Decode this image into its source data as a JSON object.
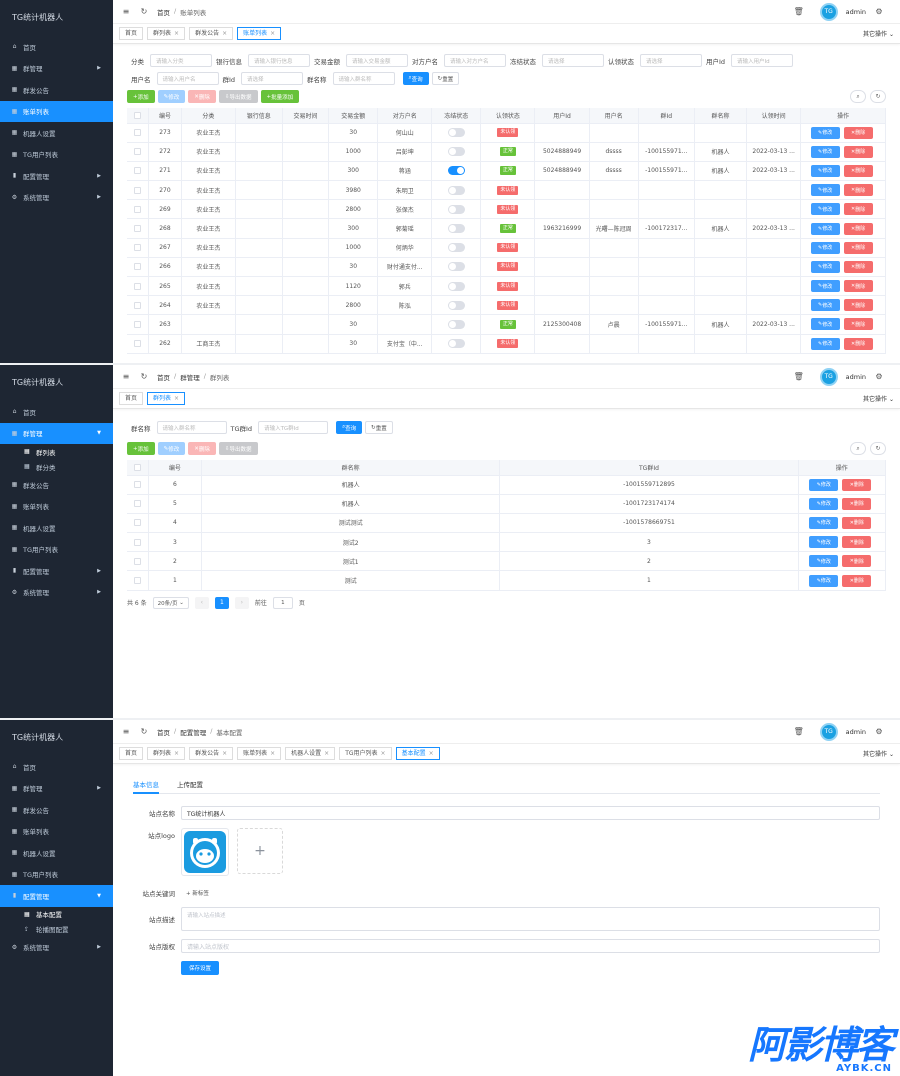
{
  "brand": "TG统计机器人",
  "menu_labels": {
    "home": "首页",
    "group_mgmt": "群管理",
    "group_list": "群列表",
    "group_category": "群分类",
    "announce": "群发公告",
    "bills": "账单列表",
    "robot": "机器人设置",
    "tg_users": "TG用户列表",
    "config": "配置管理",
    "basic_config": "基本配置",
    "carousel_config": "轮播图配置",
    "system": "系统管理"
  },
  "user": {
    "name": "admin"
  },
  "other_ops": "其它操作",
  "screen1": {
    "breadcrumb": [
      "首页",
      "账单列表"
    ],
    "tags": [
      "首页",
      "群列表",
      "群发公告",
      "账单列表"
    ],
    "filters_row1": [
      {
        "label": "分类",
        "placeholder": "请输入分类"
      },
      {
        "label": "银行信息",
        "placeholder": "请输入银行信息"
      },
      {
        "label": "交易金额",
        "placeholder": "请输入交易金额"
      },
      {
        "label": "对方户名",
        "placeholder": "请输入对方户名"
      },
      {
        "label": "冻结状态",
        "placeholder": "请选择"
      },
      {
        "label": "认领状态",
        "placeholder": "请选择"
      },
      {
        "label": "用户Id",
        "placeholder": "请输入用户Id"
      }
    ],
    "filters_row2": [
      {
        "label": "用户名",
        "placeholder": "请输入用户名"
      },
      {
        "label": "群Id",
        "placeholder": "请选择"
      },
      {
        "label": "群名称",
        "placeholder": "请输入群名称"
      }
    ],
    "search_btn": "查询",
    "reset_btn": "重置",
    "actions": [
      "添加",
      "修改",
      "删除",
      "导出数据",
      "批量添加"
    ],
    "columns": [
      "编号",
      "分类",
      "银行信息",
      "交易时间",
      "交易金额",
      "对方户名",
      "冻结状态",
      "认领状态",
      "用户Id",
      "用户名",
      "群Id",
      "群名称",
      "认领时间",
      "操作"
    ],
    "rows": [
      {
        "id": "273",
        "cat": "农业王杰",
        "bank": "",
        "time": "",
        "amount": "30",
        "payer": "何山山",
        "frozen": false,
        "claim": "未认领",
        "claim_type": "red",
        "uid": "",
        "uname": "",
        "gid": "",
        "gname": "",
        "ctime": ""
      },
      {
        "id": "272",
        "cat": "农业王杰",
        "bank": "",
        "time": "",
        "amount": "1000",
        "payer": "吕彭坤",
        "frozen": false,
        "claim": "正常",
        "claim_type": "green",
        "uid": "5024888949",
        "uname": "dssss",
        "gid": "-100155971...",
        "gname": "机器人",
        "ctime": "2022-03-13 ..."
      },
      {
        "id": "271",
        "cat": "农业王杰",
        "bank": "",
        "time": "",
        "amount": "300",
        "payer": "蒋涵",
        "frozen": true,
        "claim": "正常",
        "claim_type": "green",
        "uid": "5024888949",
        "uname": "dssss",
        "gid": "-100155971...",
        "gname": "机器人",
        "ctime": "2022-03-13 ..."
      },
      {
        "id": "270",
        "cat": "农业王杰",
        "bank": "",
        "time": "",
        "amount": "3980",
        "payer": "朱明卫",
        "frozen": false,
        "claim": "未认领",
        "claim_type": "red",
        "uid": "",
        "uname": "",
        "gid": "",
        "gname": "",
        "ctime": ""
      },
      {
        "id": "269",
        "cat": "农业王杰",
        "bank": "",
        "time": "",
        "amount": "2800",
        "payer": "张保杰",
        "frozen": false,
        "claim": "未认领",
        "claim_type": "red",
        "uid": "",
        "uname": "",
        "gid": "",
        "gname": "",
        "ctime": ""
      },
      {
        "id": "268",
        "cat": "农业王杰",
        "bank": "",
        "time": "",
        "amount": "300",
        "payer": "郭菊瑶",
        "frozen": false,
        "claim": "正常",
        "claim_type": "green",
        "uid": "1963216999",
        "uname": "光曙—陈冠周",
        "gid": "-100172317...",
        "gname": "机器人",
        "ctime": "2022-03-13 ..."
      },
      {
        "id": "267",
        "cat": "农业王杰",
        "bank": "",
        "time": "",
        "amount": "1000",
        "payer": "何炳华",
        "frozen": false,
        "claim": "未认领",
        "claim_type": "red",
        "uid": "",
        "uname": "",
        "gid": "",
        "gname": "",
        "ctime": ""
      },
      {
        "id": "266",
        "cat": "农业王杰",
        "bank": "",
        "time": "",
        "amount": "30",
        "payer": "财付通支付...",
        "frozen": false,
        "claim": "未认领",
        "claim_type": "red",
        "uid": "",
        "uname": "",
        "gid": "",
        "gname": "",
        "ctime": ""
      },
      {
        "id": "265",
        "cat": "农业王杰",
        "bank": "",
        "time": "",
        "amount": "1120",
        "payer": "郭兵",
        "frozen": false,
        "claim": "未认领",
        "claim_type": "red",
        "uid": "",
        "uname": "",
        "gid": "",
        "gname": "",
        "ctime": ""
      },
      {
        "id": "264",
        "cat": "农业王杰",
        "bank": "",
        "time": "",
        "amount": "2800",
        "payer": "陈泓",
        "frozen": false,
        "claim": "未认领",
        "claim_type": "red",
        "uid": "",
        "uname": "",
        "gid": "",
        "gname": "",
        "ctime": ""
      },
      {
        "id": "263",
        "cat": "",
        "bank": "",
        "time": "",
        "amount": "30",
        "payer": "",
        "frozen": false,
        "claim": "正常",
        "claim_type": "green",
        "uid": "2125300408",
        "uname": "卢晨",
        "gid": "-100155971...",
        "gname": "机器人",
        "ctime": "2022-03-13 ..."
      },
      {
        "id": "262",
        "cat": "工商王杰",
        "bank": "",
        "time": "",
        "amount": "30",
        "payer": "支付宝（中...",
        "frozen": false,
        "claim": "未认领",
        "claim_type": "red",
        "uid": "",
        "uname": "",
        "gid": "",
        "gname": "",
        "ctime": ""
      }
    ],
    "edit_btn": "修改",
    "del_btn": "删除"
  },
  "screen2": {
    "breadcrumb": [
      "首页",
      "群管理",
      "群列表"
    ],
    "tags": [
      "首页",
      "群列表"
    ],
    "filters": [
      {
        "label": "群名称",
        "placeholder": "请输入群名称"
      },
      {
        "label": "TG群Id",
        "placeholder": "请输入TG群Id"
      }
    ],
    "search_btn": "查询",
    "reset_btn": "重置",
    "actions": [
      "添加",
      "修改",
      "删除",
      "导出数据"
    ],
    "columns": [
      "编号",
      "群名称",
      "TG群Id",
      "操作"
    ],
    "rows": [
      {
        "id": "6",
        "name": "机器人",
        "tgid": "-1001559712895"
      },
      {
        "id": "5",
        "name": "机器人",
        "tgid": "-1001723174174"
      },
      {
        "id": "4",
        "name": "测试测试",
        "tgid": "-1001578669751"
      },
      {
        "id": "3",
        "name": "测试2",
        "tgid": "3"
      },
      {
        "id": "2",
        "name": "测试1",
        "tgid": "2"
      },
      {
        "id": "1",
        "name": "测试",
        "tgid": "1"
      }
    ],
    "edit_btn": "修改",
    "del_btn": "删除",
    "pager": {
      "total": "共 6 条",
      "size": "20条/页",
      "page": "1",
      "goto": "前往",
      "goto_val": "1",
      "unit": "页"
    }
  },
  "screen3": {
    "breadcrumb": [
      "首页",
      "配置管理",
      "基本配置"
    ],
    "tags": [
      "首页",
      "群列表",
      "群发公告",
      "账单列表",
      "机器人设置",
      "TG用户列表",
      "基本配置"
    ],
    "form_tabs": [
      "基本信息",
      "上传配置"
    ],
    "site_name_label": "站点名称",
    "site_name_value": "TG统计机器人",
    "site_logo_label": "站点logo",
    "keywords_label": "站点关键词",
    "keywords_btn": "+ 新标签",
    "desc_label": "站点描述",
    "desc_placeholder": "请输入站点描述",
    "copyright_label": "站点版权",
    "copyright_placeholder": "请输入站点版权",
    "save_btn": "保存设置"
  },
  "watermark": {
    "cn": "阿影博客",
    "en": "AYBK.CN"
  },
  "colors": {
    "sidebar": "#1e2633",
    "primary": "#1890ff",
    "success": "#67c23a",
    "danger": "#f56c6c"
  }
}
